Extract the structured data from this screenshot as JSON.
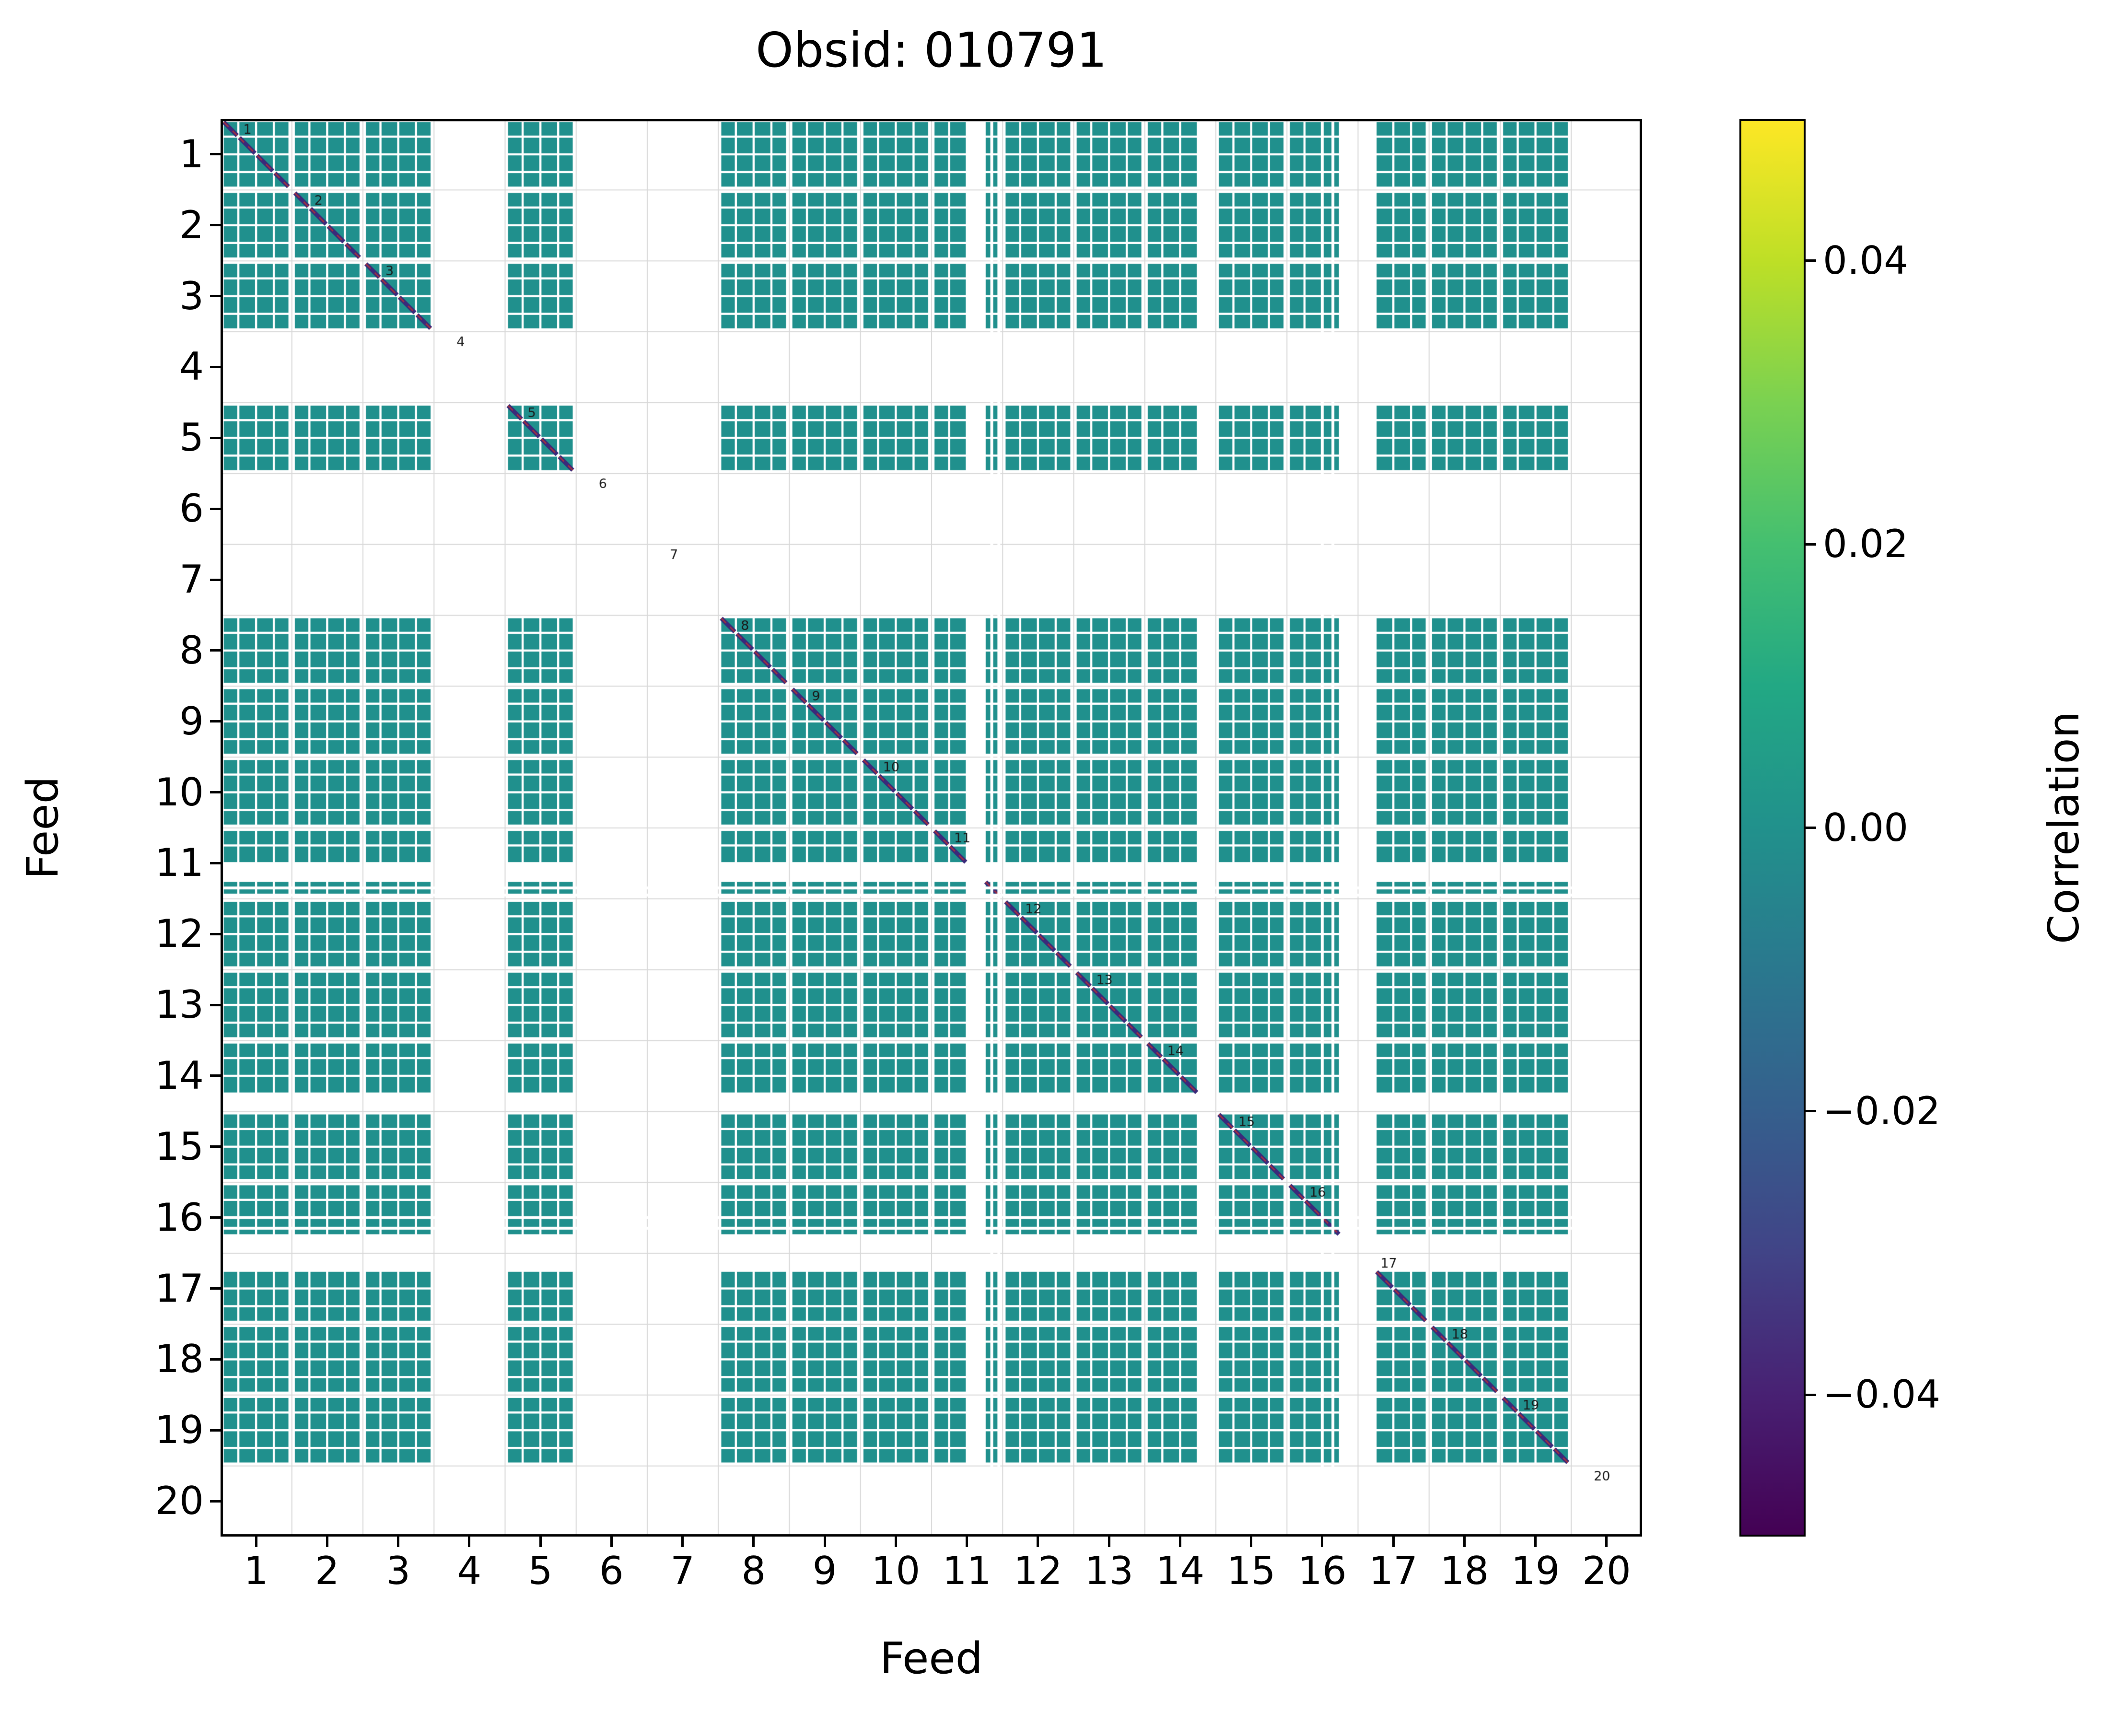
{
  "chart_data": {
    "type": "heatmap",
    "title": "Obsid: 010791",
    "xlabel": "Feed",
    "ylabel": "Feed",
    "feeds": [
      1,
      2,
      3,
      4,
      5,
      6,
      7,
      8,
      9,
      10,
      11,
      12,
      13,
      14,
      15,
      16,
      17,
      18,
      19,
      20
    ],
    "x_tick_labels": [
      "1",
      "2",
      "3",
      "4",
      "5",
      "6",
      "7",
      "8",
      "9",
      "10",
      "11",
      "12",
      "13",
      "14",
      "15",
      "16",
      "17",
      "18",
      "19",
      "20"
    ],
    "y_tick_labels": [
      "1",
      "2",
      "3",
      "4",
      "5",
      "6",
      "7",
      "8",
      "9",
      "10",
      "11",
      "12",
      "13",
      "14",
      "15",
      "16",
      "17",
      "18",
      "19",
      "20"
    ],
    "diag_labels": [
      "1",
      "2",
      "3",
      "4",
      "5",
      "6",
      "7",
      "8",
      "9",
      "10",
      "11",
      "12",
      "13",
      "14",
      "15",
      "16",
      "17",
      "18",
      "19",
      "20"
    ],
    "bands_per_feed": 4,
    "inactive_feeds": [
      4,
      6,
      7,
      20
    ],
    "active_bands": {
      "1": [
        1,
        2,
        3,
        4
      ],
      "2": [
        1,
        2,
        3,
        4
      ],
      "3": [
        1,
        2,
        3,
        4
      ],
      "4": [],
      "5": [
        1,
        2,
        3,
        4
      ],
      "6": [],
      "7": [],
      "8": [
        1,
        2,
        3,
        4
      ],
      "9": [
        1,
        2,
        3,
        4
      ],
      "10": [
        1,
        2,
        3,
        4
      ],
      "11": [
        1,
        2,
        4
      ],
      "12": [
        1,
        2,
        3,
        4
      ],
      "13": [
        1,
        2,
        3,
        4
      ],
      "14": [
        1,
        2,
        3
      ],
      "15": [
        1,
        2,
        3,
        4
      ],
      "16": [
        1,
        2,
        3
      ],
      "17": [
        2,
        3,
        4
      ],
      "18": [
        1,
        2,
        3,
        4
      ],
      "19": [
        1,
        2,
        3,
        4
      ],
      "20": []
    },
    "extra_gaps": [
      10.85,
      10.95,
      15.5,
      15.65
    ],
    "offdiagonal_value_approx": 0.0,
    "diagonal_value": "masked/low",
    "cell_color": "#20908d",
    "diagonal_color": "#3a2a7a",
    "diagonal_dash_color": "#a03040",
    "grid_color": "#d8d8d8",
    "colorbar": {
      "label": "Correlation",
      "vmin": -0.05,
      "vmax": 0.05,
      "tick_values": [
        0.04,
        0.02,
        0.0,
        -0.02,
        -0.04
      ],
      "tick_labels": [
        "0.04",
        "0.02",
        "0.00",
        "−0.02",
        "−0.04"
      ],
      "gradient": [
        "#fde725",
        "#bddf26",
        "#7ad151",
        "#44bf70",
        "#22a884",
        "#21918c",
        "#2a788e",
        "#355f8d",
        "#414487",
        "#482173",
        "#440154"
      ]
    }
  }
}
